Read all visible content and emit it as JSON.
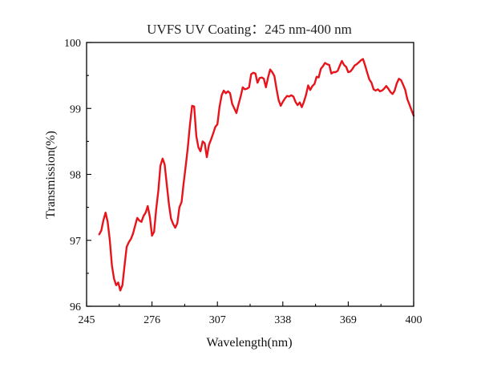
{
  "chart_data": {
    "type": "line",
    "title": "UVFS UV Coating：245 nm-400 nm",
    "xlabel": "Wavelength(nm)",
    "ylabel": "Transmission(%)",
    "xlim": [
      245,
      400
    ],
    "ylim": [
      96,
      100
    ],
    "x_ticks": [
      245,
      276,
      307,
      338,
      369,
      400
    ],
    "y_ticks": [
      96,
      97,
      98,
      99,
      100
    ],
    "grid": false,
    "line_color": "#e8141c",
    "series": [
      {
        "x": [
          251.0,
          252.0,
          253.0,
          254.0,
          255.0,
          256.0,
          257.0,
          258.0,
          259.0,
          260.0,
          261.0,
          262.0,
          263.0,
          264.0,
          265.0,
          266.0,
          267.0,
          268.0,
          269.0,
          270.0,
          271.0,
          272.0,
          273.0,
          274.0,
          275.0,
          276.0,
          277.0,
          278.0,
          279.0,
          280.0,
          281.0,
          282.0,
          283.0,
          284.0,
          285.0,
          286.0,
          287.0,
          288.0,
          289.0,
          290.0,
          291.0,
          292.0,
          293.0,
          294.0,
          295.0,
          296.0,
          297.0,
          298.0,
          299.0,
          300.0,
          301.0,
          302.0,
          303.0,
          304.0,
          305.0,
          306.0,
          307.0,
          308.0,
          309.0,
          310.0,
          311.0,
          312.0,
          313.0,
          314.0,
          315.0,
          316.0,
          317.0,
          318.0,
          319.0,
          320.0,
          321.0,
          322.0,
          323.0,
          324.0,
          325.0,
          326.0,
          327.0,
          328.0,
          329.0,
          330.0,
          331.0,
          332.0,
          333.0,
          334.0,
          335.0,
          336.0,
          337.0,
          338.0,
          339.0,
          340.0,
          341.0,
          342.0,
          343.0,
          344.0,
          345.0,
          346.0,
          347.0,
          348.0,
          349.0,
          350.0,
          351.0,
          352.0,
          353.0,
          354.0,
          355.0,
          356.0,
          357.0,
          358.0,
          359.0,
          360.0,
          361.0,
          362.0,
          363.0,
          364.0,
          365.0,
          366.0,
          367.0,
          368.0,
          369.0,
          370.0,
          371.0,
          372.0,
          373.0,
          374.0,
          375.0,
          376.0,
          377.0,
          378.0,
          379.0,
          380.0,
          381.0,
          382.0,
          383.0,
          384.0,
          385.0,
          386.0,
          387.0,
          388.0,
          389.0,
          390.0,
          391.0,
          392.0,
          393.0,
          394.0,
          395.0,
          396.0,
          397.0,
          398.0,
          399.0,
          400.0
        ],
        "y": [
          97.09,
          97.15,
          97.31,
          97.42,
          97.28,
          97.0,
          96.62,
          96.42,
          96.32,
          96.36,
          96.24,
          96.32,
          96.62,
          96.9,
          96.97,
          97.02,
          97.1,
          97.22,
          97.34,
          97.3,
          97.28,
          97.37,
          97.42,
          97.52,
          97.35,
          97.07,
          97.13,
          97.48,
          97.75,
          98.13,
          98.24,
          98.15,
          97.85,
          97.55,
          97.33,
          97.25,
          97.19,
          97.26,
          97.5,
          97.58,
          97.87,
          98.13,
          98.41,
          98.76,
          99.04,
          99.03,
          98.58,
          98.41,
          98.35,
          98.5,
          98.47,
          98.26,
          98.45,
          98.53,
          98.62,
          98.72,
          98.76,
          99.02,
          99.2,
          99.27,
          99.23,
          99.26,
          99.23,
          99.07,
          99.0,
          98.93,
          99.06,
          99.18,
          99.32,
          99.29,
          99.3,
          99.32,
          99.52,
          99.54,
          99.53,
          99.39,
          99.46,
          99.47,
          99.45,
          99.32,
          99.47,
          99.59,
          99.55,
          99.49,
          99.3,
          99.13,
          99.04,
          99.1,
          99.15,
          99.19,
          99.18,
          99.2,
          99.18,
          99.1,
          99.05,
          99.09,
          99.02,
          99.1,
          99.21,
          99.35,
          99.28,
          99.34,
          99.37,
          99.48,
          99.47,
          99.6,
          99.64,
          99.69,
          99.67,
          99.66,
          99.53,
          99.55,
          99.55,
          99.57,
          99.65,
          99.72,
          99.66,
          99.63,
          99.55,
          99.56,
          99.6,
          99.65,
          99.67,
          99.7,
          99.73,
          99.75,
          99.65,
          99.54,
          99.44,
          99.39,
          99.29,
          99.27,
          99.29,
          99.26,
          99.27,
          99.3,
          99.34,
          99.3,
          99.25,
          99.22,
          99.27,
          99.38,
          99.45,
          99.43,
          99.36,
          99.28,
          99.14,
          99.06,
          98.97,
          98.89
        ]
      }
    ]
  }
}
